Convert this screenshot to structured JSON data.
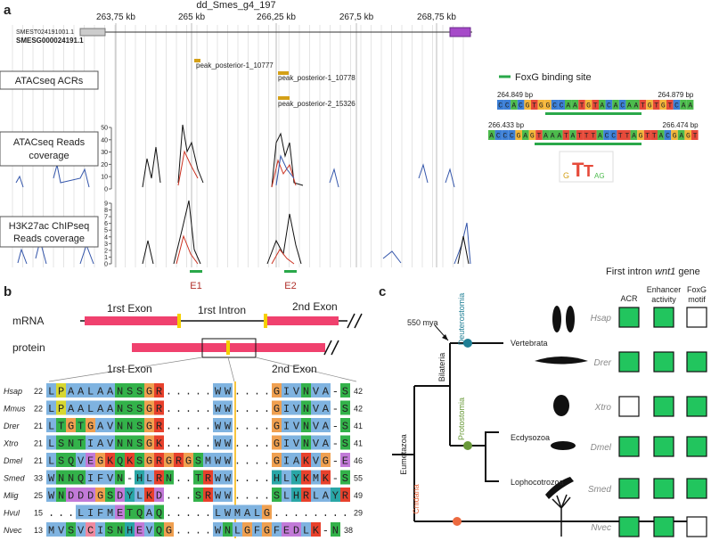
{
  "panel_a": {
    "label": "a",
    "title": "dd_Smes_g4_197",
    "kb_ticks": [
      "263,75 kb",
      "265 kb",
      "266,25 kb",
      "267,5 kb",
      "268,75 kb"
    ],
    "transcript": "SMEST024191001.1",
    "gene": "SMESG000024191.1",
    "track_acr": "ATACseq ACRs",
    "track_atac": [
      "ATACseq Reads",
      "coverage"
    ],
    "track_chip": [
      "H3K27ac ChIPseq",
      "Reads coverage"
    ],
    "peaks": [
      "peak_posterior-1_10777",
      "peak_posterior-1_10778",
      "peak_posterior-2_15326"
    ],
    "atac_ticks": [
      50,
      40,
      30,
      20,
      10,
      0
    ],
    "chip_ticks": [
      9,
      8,
      7,
      6,
      5,
      4,
      3,
      2,
      1,
      0
    ],
    "elements": [
      "E1",
      "E2"
    ],
    "legend": "FoxG binding site",
    "sites": [
      {
        "start": "264.849 bp",
        "end": "264.879 bp",
        "sequence": "CCACGTGGCCAATGTACACAATGTGTCAA"
      },
      {
        "start": "266.433 bp",
        "end": "266.474 bp",
        "sequence": "ACCCGAGTAAATATTTACCTTAGTTACGAGT"
      }
    ]
  },
  "panel_b": {
    "label": "b",
    "mrna": "mRNA",
    "protein": "protein",
    "exon1": "1rst Exon",
    "intron": "1rst Intron",
    "exon2": "2nd Exon",
    "alignment": [
      {
        "species": "Hsap",
        "start": 22,
        "sequence": "LPAALAANSSGR.....WW....GIVNVA-S",
        "end": 42
      },
      {
        "species": "Mmus",
        "start": 22,
        "sequence": "LPAALAANSSGR.....WW....GIVNVA-S",
        "end": 42
      },
      {
        "species": "Drer",
        "start": 21,
        "sequence": "LTGTGAVNNSGR.....WW....GIVNVA-S",
        "end": 41
      },
      {
        "species": "Xtro",
        "start": 21,
        "sequence": "LSNTIAVNNSGK.....WW....GIVNVA-S",
        "end": 41
      },
      {
        "species": "Dmel",
        "start": 21,
        "sequence": "LSQVEGKQKSGRGRGSMWW....GIAKVG-E",
        "end": 46
      },
      {
        "species": "Smed",
        "start": 33,
        "sequence": "WNNQIFVN-HLRN..TRWW....HLYKMK-S",
        "end": 55
      },
      {
        "species": "Mlig",
        "start": 25,
        "sequence": "WNDDDGSDYLKD...SRWW....SLHRLAYR",
        "end": 49
      },
      {
        "species": "Hvul",
        "start": 15,
        "sequence": "...LIFMETQAQ.....LWMALG........",
        "end": 29
      },
      {
        "species": "Nvec",
        "start": 13,
        "sequence": "MVSVCISNHEVQG....WNLGFGFEDLK-N",
        "end": 38
      }
    ]
  },
  "panel_c": {
    "label": "c",
    "header_pre": "First intron",
    "header_gene": "wnt1",
    "header_post": "gene",
    "columns": [
      "ACR",
      [
        "Enhancer",
        "activity"
      ],
      [
        "FoxG",
        "motif"
      ]
    ],
    "mya": "550 mya",
    "clades": {
      "eumetazoa": "Eumetazoa",
      "bilateria": "Bilateria",
      "deuterostomia": "Deuterostomia",
      "protostomia": "Protostomia",
      "cnidaria": "Cnidaria",
      "vertebrata": "Vertebrata",
      "ecdysozoa": "Ecdysozoa",
      "lophotrochozoa": "Lophocotrozoa"
    },
    "matrix": [
      {
        "species": "Hsap",
        "acr": true,
        "enhancer": true,
        "foxg": false
      },
      {
        "species": "Drer",
        "acr": true,
        "enhancer": true,
        "foxg": true
      },
      {
        "species": "Xtro",
        "acr": false,
        "enhancer": true,
        "foxg": true
      },
      {
        "species": "Dmel",
        "acr": true,
        "enhancer": true,
        "foxg": true
      },
      {
        "species": "Smed",
        "acr": true,
        "enhancer": true,
        "foxg": true
      },
      {
        "species": "Nvec",
        "acr": true,
        "enhancer": true,
        "foxg": false
      }
    ]
  }
}
